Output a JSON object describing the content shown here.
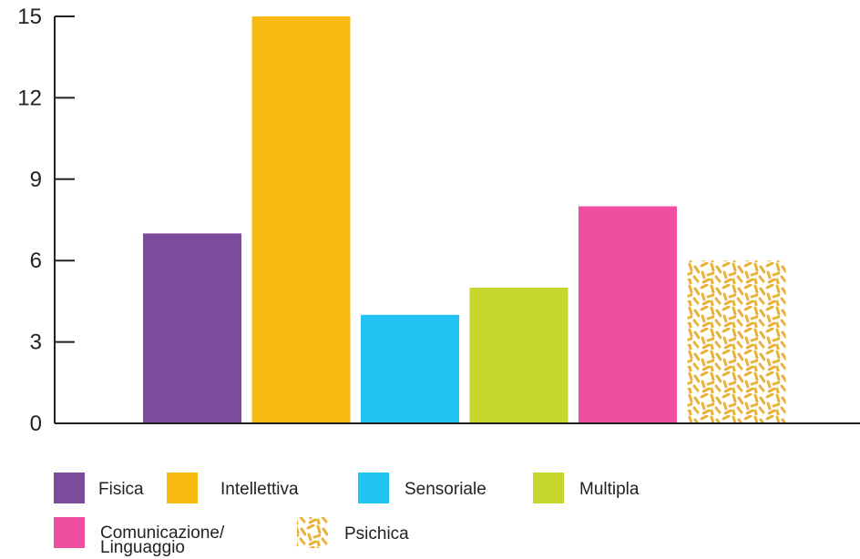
{
  "chart_data": {
    "type": "bar",
    "title": "",
    "xlabel": "",
    "ylabel": "",
    "ylim": [
      0,
      15
    ],
    "yticks": [
      0,
      3,
      6,
      9,
      12,
      15
    ],
    "grid": false,
    "legend_position": "bottom",
    "bars": [
      {
        "name": "Fisica",
        "value": 7,
        "color": "#7b4b9c",
        "pattern": "solid"
      },
      {
        "name": "Intellettiva",
        "value": 15,
        "color": "#f9bb13",
        "pattern": "solid"
      },
      {
        "name": "Sensoriale",
        "value": 4,
        "color": "#21c3f1",
        "pattern": "solid"
      },
      {
        "name": "Multipla",
        "value": 5,
        "color": "#c5d62d",
        "pattern": "solid"
      },
      {
        "name": "Comunicazione/ Linguaggio",
        "value": 8,
        "color": "#ee4f9f",
        "pattern": "solid"
      },
      {
        "name": "Psichica",
        "value": 6,
        "color": "#e8b23a",
        "pattern": "dashes"
      }
    ],
    "legend": [
      {
        "label_lines": [
          "Fisica"
        ]
      },
      {
        "label_lines": [
          "Intellettiva"
        ]
      },
      {
        "label_lines": [
          "Sensoriale"
        ]
      },
      {
        "label_lines": [
          "Multipla"
        ]
      },
      {
        "label_lines": [
          "Comunicazione/",
          "Linguaggio"
        ]
      },
      {
        "label_lines": [
          "Psichica"
        ]
      }
    ]
  }
}
